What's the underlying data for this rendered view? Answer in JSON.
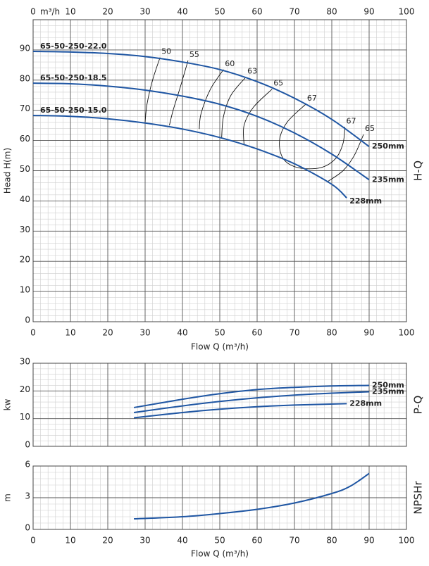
{
  "chart_data": [
    {
      "type": "line",
      "top_axis_unit": "m³/h",
      "x_label": "Flow Q (m³/h)",
      "y_label": "Head H(m)",
      "side_label": "H-Q",
      "xlim": [
        0,
        100
      ],
      "xticks": [
        0,
        10,
        20,
        30,
        40,
        50,
        60,
        70,
        80,
        90,
        100
      ],
      "x_tick_label_sides": [
        "top",
        "bottom"
      ],
      "ylim": [
        0,
        100
      ],
      "yticks": [
        0,
        10,
        20,
        30,
        40,
        50,
        60,
        70,
        80,
        90
      ],
      "grid": true,
      "color": "#1f56a3",
      "series": [
        {
          "name": "250mm",
          "model": "65-50-250-22.0",
          "x": [
            0,
            10,
            20,
            30,
            40,
            50,
            60,
            70,
            80,
            90
          ],
          "values": [
            89.5,
            89.3,
            88.8,
            87.8,
            86,
            83.5,
            79.5,
            74,
            67,
            58
          ]
        },
        {
          "name": "235mm",
          "model": "65-50-250-18.5",
          "x": [
            0,
            10,
            20,
            30,
            40,
            50,
            60,
            70,
            80,
            90
          ],
          "values": [
            79,
            78.8,
            78,
            76.7,
            74.7,
            72,
            68,
            62.5,
            55.5,
            47
          ]
        },
        {
          "name": "228mm",
          "model": "65-50-250-15.0",
          "x": [
            0,
            10,
            20,
            30,
            40,
            50,
            60,
            70,
            80,
            84
          ],
          "values": [
            68.3,
            68,
            67.2,
            65.8,
            63.8,
            61,
            57.2,
            52.3,
            45.5,
            41
          ]
        }
      ],
      "efficiency_lines": [
        {
          "labels": [
            "50"
          ],
          "x": [
            34,
            32,
            30.5,
            30
          ],
          "values": [
            87.5,
            80,
            72,
            66
          ]
        },
        {
          "labels": [
            "55"
          ],
          "x": [
            41.5,
            39.5,
            37.5,
            36.5
          ],
          "values": [
            86.5,
            78,
            70,
            65
          ]
        },
        {
          "labels": [
            "60"
          ],
          "x": [
            51,
            47.5,
            45,
            44.5
          ],
          "values": [
            83.5,
            77,
            69,
            63.8
          ]
        },
        {
          "labels": [
            "63"
          ],
          "x": [
            57,
            53,
            51,
            50.5
          ],
          "values": [
            81,
            75,
            68,
            61
          ]
        },
        {
          "labels": [
            "65"
          ],
          "x": [
            64,
            59,
            56.5,
            56.5
          ],
          "values": [
            77,
            71,
            65,
            58.5
          ]
        },
        {
          "labels": [
            "67",
            "67"
          ],
          "x": [
            73,
            68,
            66,
            67,
            71,
            77,
            81,
            83,
            83.5
          ],
          "values": [
            72,
            66,
            60,
            54,
            51,
            51,
            54,
            59,
            64.5
          ]
        },
        {
          "labels": [
            "65"
          ],
          "x": [
            88.5,
            86,
            83,
            79
          ],
          "values": [
            62,
            55,
            50,
            46.5
          ]
        }
      ]
    },
    {
      "type": "line",
      "y_label": "kw",
      "side_label": "P-Q",
      "xlim": [
        0,
        100
      ],
      "xticks": [
        0,
        10,
        20,
        30,
        40,
        50,
        60,
        70,
        80,
        90,
        100
      ],
      "x_tick_label_sides": [],
      "ylim": [
        0,
        30
      ],
      "yticks": [
        0,
        10,
        20,
        30
      ],
      "grid": true,
      "color": "#1f56a3",
      "series": [
        {
          "name": "250mm",
          "x": [
            27,
            40,
            50,
            60,
            70,
            80,
            90
          ],
          "values": [
            14,
            17,
            19,
            20.5,
            21.3,
            21.8,
            22
          ]
        },
        {
          "name": "235mm",
          "x": [
            27,
            40,
            50,
            60,
            70,
            80,
            90
          ],
          "values": [
            12.2,
            14.6,
            16.2,
            17.5,
            18.5,
            19.2,
            19.7
          ]
        },
        {
          "name": "228mm",
          "x": [
            27,
            40,
            50,
            60,
            70,
            84
          ],
          "values": [
            10.3,
            12.2,
            13.4,
            14.3,
            14.9,
            15.4
          ]
        }
      ]
    },
    {
      "type": "line",
      "x_label": "Flow Q (m³/h)",
      "y_label": "m",
      "side_label": "NPSHr",
      "xlim": [
        0,
        100
      ],
      "xticks": [
        0,
        10,
        20,
        30,
        40,
        50,
        60,
        70,
        80,
        90,
        100
      ],
      "x_tick_label_sides": [
        "bottom"
      ],
      "ylim": [
        0,
        6
      ],
      "yticks": [
        0,
        3,
        6
      ],
      "grid": true,
      "color": "#1f56a3",
      "series": [
        {
          "x": [
            27,
            40,
            50,
            60,
            70,
            80,
            85,
            90
          ],
          "values": [
            1.0,
            1.2,
            1.5,
            1.9,
            2.5,
            3.4,
            4.1,
            5.3
          ]
        }
      ]
    }
  ]
}
